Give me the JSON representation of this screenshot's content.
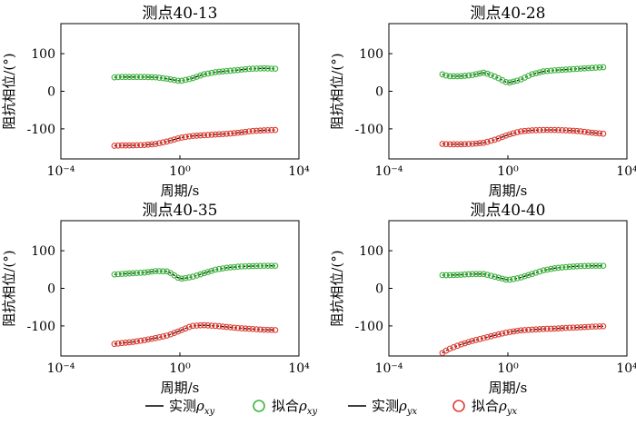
{
  "chart_data": [
    {
      "type": "line",
      "title": "测点40-13",
      "xlabel": "周期/s",
      "ylabel": "阻抗相位/(°)",
      "xscale": "log",
      "xlim": [
        0.0001,
        10000
      ],
      "ylim": [
        -180,
        180
      ],
      "xticks": [
        "10⁻⁴",
        "10⁰",
        "10⁴"
      ],
      "yticks": [
        100,
        0,
        -100
      ],
      "series": [
        {
          "name": "实测ρxy",
          "x": [
            0.0063,
            0.01,
            0.025,
            0.063,
            0.16,
            0.4,
            1,
            2.5,
            6.3,
            16,
            40,
            100,
            250,
            630,
            1600
          ],
          "values": [
            37,
            38,
            38,
            38,
            37,
            33,
            27,
            34,
            45,
            51,
            54,
            57,
            60,
            61,
            60
          ]
        },
        {
          "name": "拟合ρxy",
          "x": [
            0.0063,
            0.01,
            0.025,
            0.063,
            0.16,
            0.4,
            1,
            2.5,
            6.3,
            16,
            40,
            100,
            250,
            630,
            1600
          ],
          "values": [
            37,
            38,
            38,
            38,
            37,
            33,
            27,
            34,
            45,
            51,
            54,
            57,
            60,
            61,
            60
          ]
        },
        {
          "name": "实测ρyx",
          "x": [
            0.0063,
            0.01,
            0.025,
            0.063,
            0.16,
            0.4,
            1,
            2.5,
            6.3,
            16,
            40,
            100,
            250,
            630,
            1600
          ],
          "values": [
            -145,
            -144,
            -144,
            -143,
            -140,
            -133,
            -124,
            -119,
            -117,
            -115,
            -113,
            -110,
            -106,
            -104,
            -103
          ]
        },
        {
          "name": "拟合ρyx",
          "x": [
            0.0063,
            0.01,
            0.025,
            0.063,
            0.16,
            0.4,
            1,
            2.5,
            6.3,
            16,
            40,
            100,
            250,
            630,
            1600
          ],
          "values": [
            -145,
            -144,
            -144,
            -143,
            -140,
            -133,
            -124,
            -119,
            -117,
            -115,
            -113,
            -110,
            -106,
            -104,
            -103
          ]
        }
      ]
    },
    {
      "type": "line",
      "title": "测点40-28",
      "xlabel": "周期/s",
      "ylabel": "阻抗相位/(°)",
      "xscale": "log",
      "xlim": [
        0.0001,
        10000
      ],
      "ylim": [
        -180,
        180
      ],
      "xticks": [
        "10⁻⁴",
        "10⁰",
        "10⁴"
      ],
      "yticks": [
        100,
        0,
        -100
      ],
      "series": [
        {
          "name": "实测ρxy",
          "x": [
            0.0063,
            0.01,
            0.025,
            0.063,
            0.16,
            0.4,
            1,
            2.5,
            6.3,
            16,
            40,
            100,
            250,
            630,
            1600
          ],
          "values": [
            45,
            40,
            40,
            43,
            50,
            38,
            22,
            30,
            45,
            53,
            56,
            58,
            60,
            62,
            64
          ]
        },
        {
          "name": "拟合ρxy",
          "x": [
            0.0063,
            0.01,
            0.025,
            0.063,
            0.16,
            0.4,
            1,
            2.5,
            6.3,
            16,
            40,
            100,
            250,
            630,
            1600
          ],
          "values": [
            45,
            40,
            40,
            43,
            50,
            38,
            22,
            30,
            45,
            53,
            56,
            58,
            60,
            62,
            64
          ]
        },
        {
          "name": "实测ρyx",
          "x": [
            0.0063,
            0.01,
            0.025,
            0.063,
            0.16,
            0.4,
            1,
            2.5,
            6.3,
            16,
            40,
            100,
            250,
            630,
            1600
          ],
          "values": [
            -140,
            -141,
            -141,
            -140,
            -137,
            -128,
            -116,
            -107,
            -104,
            -103,
            -103,
            -104,
            -106,
            -110,
            -113
          ]
        },
        {
          "name": "拟合ρyx",
          "x": [
            0.0063,
            0.01,
            0.025,
            0.063,
            0.16,
            0.4,
            1,
            2.5,
            6.3,
            16,
            40,
            100,
            250,
            630,
            1600
          ],
          "values": [
            -140,
            -141,
            -141,
            -140,
            -137,
            -128,
            -116,
            -107,
            -104,
            -103,
            -103,
            -104,
            -106,
            -110,
            -113
          ]
        }
      ]
    },
    {
      "type": "line",
      "title": "测点40-35",
      "xlabel": "周期/s",
      "ylabel": "阻抗相位/(°)",
      "xscale": "log",
      "xlim": [
        0.0001,
        10000
      ],
      "ylim": [
        -180,
        180
      ],
      "xticks": [
        "10⁻⁴",
        "10⁰",
        "10⁴"
      ],
      "yticks": [
        100,
        0,
        -100
      ],
      "series": [
        {
          "name": "实测ρxy",
          "x": [
            0.0063,
            0.01,
            0.025,
            0.063,
            0.16,
            0.4,
            1,
            2.5,
            6.3,
            16,
            40,
            100,
            250,
            630,
            1600
          ],
          "values": [
            37,
            38,
            40,
            42,
            46,
            45,
            25,
            30,
            40,
            50,
            55,
            58,
            59,
            60,
            60
          ]
        },
        {
          "name": "拟合ρxy",
          "x": [
            0.0063,
            0.01,
            0.025,
            0.063,
            0.16,
            0.4,
            1,
            2.5,
            6.3,
            16,
            40,
            100,
            250,
            630,
            1600
          ],
          "values": [
            37,
            38,
            40,
            42,
            46,
            45,
            25,
            30,
            40,
            50,
            55,
            58,
            59,
            60,
            60
          ]
        },
        {
          "name": "实测ρyx",
          "x": [
            0.0063,
            0.01,
            0.025,
            0.063,
            0.16,
            0.4,
            1,
            2.5,
            6.3,
            16,
            40,
            100,
            250,
            630,
            1600
          ],
          "values": [
            -148,
            -146,
            -143,
            -138,
            -132,
            -125,
            -113,
            -100,
            -98,
            -100,
            -103,
            -106,
            -108,
            -110,
            -111
          ]
        },
        {
          "name": "拟合ρyx",
          "x": [
            0.0063,
            0.01,
            0.025,
            0.063,
            0.16,
            0.4,
            1,
            2.5,
            6.3,
            16,
            40,
            100,
            250,
            630,
            1600
          ],
          "values": [
            -148,
            -146,
            -143,
            -138,
            -132,
            -125,
            -113,
            -100,
            -98,
            -100,
            -103,
            -106,
            -108,
            -110,
            -111
          ]
        }
      ]
    },
    {
      "type": "line",
      "title": "测点40-40",
      "xlabel": "周期/s",
      "ylabel": "阻抗相位/(°)",
      "xscale": "log",
      "xlim": [
        0.0001,
        10000
      ],
      "ylim": [
        -180,
        180
      ],
      "xticks": [
        "10⁻⁴",
        "10⁰",
        "10⁴"
      ],
      "yticks": [
        100,
        0,
        -100
      ],
      "series": [
        {
          "name": "实测ρxy",
          "x": [
            0.0063,
            0.01,
            0.025,
            0.063,
            0.16,
            0.4,
            1,
            2.5,
            6.3,
            16,
            40,
            100,
            250,
            630,
            1600
          ],
          "values": [
            35,
            35,
            36,
            38,
            38,
            30,
            22,
            28,
            38,
            48,
            54,
            57,
            59,
            60,
            60
          ]
        },
        {
          "name": "拟合ρxy",
          "x": [
            0.0063,
            0.01,
            0.025,
            0.063,
            0.16,
            0.4,
            1,
            2.5,
            6.3,
            16,
            40,
            100,
            250,
            630,
            1600
          ],
          "values": [
            35,
            35,
            36,
            38,
            38,
            30,
            22,
            28,
            38,
            48,
            54,
            57,
            59,
            60,
            60
          ]
        },
        {
          "name": "实测ρyx",
          "x": [
            0.0063,
            0.01,
            0.025,
            0.063,
            0.16,
            0.4,
            1,
            2.5,
            6.3,
            16,
            40,
            100,
            250,
            630,
            1600
          ],
          "values": [
            -172,
            -162,
            -150,
            -140,
            -132,
            -124,
            -117,
            -112,
            -110,
            -108,
            -107,
            -105,
            -104,
            -102,
            -101
          ]
        },
        {
          "name": "拟合ρyx",
          "x": [
            0.0063,
            0.01,
            0.025,
            0.063,
            0.16,
            0.4,
            1,
            2.5,
            6.3,
            16,
            40,
            100,
            250,
            630,
            1600
          ],
          "values": [
            -172,
            -162,
            -150,
            -140,
            -132,
            -124,
            -117,
            -112,
            -110,
            -108,
            -107,
            -105,
            -104,
            -102,
            -101
          ]
        }
      ]
    }
  ],
  "legend": {
    "placement": "bottom-center",
    "items": [
      {
        "kind": "line",
        "label": "实测",
        "sub": "xy"
      },
      {
        "kind": "circle",
        "color": "#3cb43c",
        "label": "拟合",
        "sub": "xy"
      },
      {
        "kind": "line",
        "label": "实测",
        "sub": "yx"
      },
      {
        "kind": "circle",
        "color": "#e03c32",
        "label": "拟合",
        "sub": "yx"
      }
    ],
    "rho": "ρ"
  },
  "colors": {
    "xy_marker": "#3cb43c",
    "yx_marker": "#e03c32",
    "observed_line": "#000000"
  }
}
